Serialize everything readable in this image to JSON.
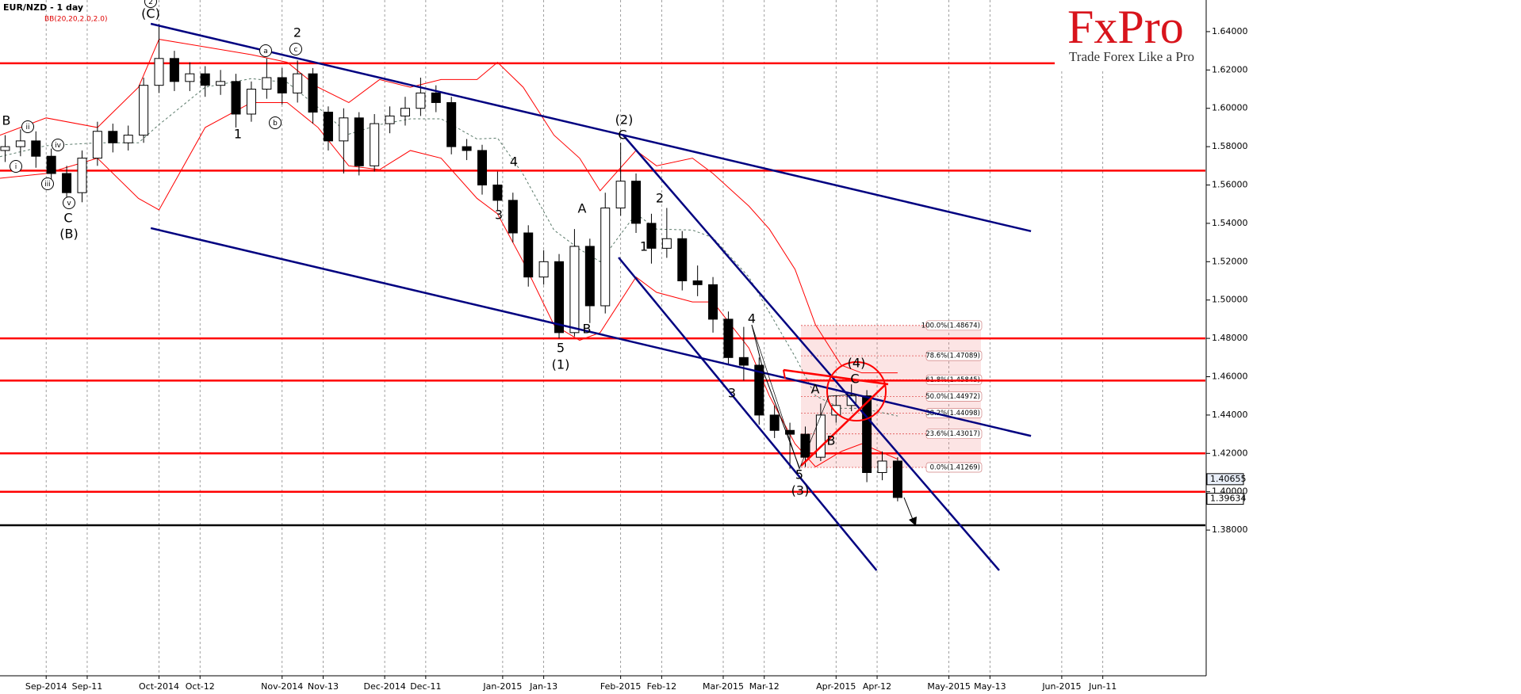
{
  "chart_data": {
    "type": "candlestick",
    "title": "EUR/NZD - 1 day",
    "subtitle": "BB(20,20,2.0,2.0)",
    "xlim": [
      -9,
      226
    ],
    "ylim": [
      1.304,
      1.6565
    ],
    "xticks": [
      {
        "value": 0,
        "label": "Sep-2014"
      },
      {
        "value": 8,
        "label": "Sep-11"
      },
      {
        "value": 22,
        "label": "Oct-2014"
      },
      {
        "value": 30,
        "label": "Oct-12"
      },
      {
        "value": 46,
        "label": "Nov-2014"
      },
      {
        "value": 54,
        "label": "Nov-13"
      },
      {
        "value": 66,
        "label": "Dec-2014"
      },
      {
        "value": 74,
        "label": "Dec-11"
      },
      {
        "value": 89,
        "label": "Jan-2015"
      },
      {
        "value": 97,
        "label": "Jan-13"
      },
      {
        "value": 112,
        "label": "Feb-2015"
      },
      {
        "value": 120,
        "label": "Feb-12"
      },
      {
        "value": 132,
        "label": "Mar-2015"
      },
      {
        "value": 140,
        "label": "Mar-12"
      },
      {
        "value": 154,
        "label": "Apr-2015"
      },
      {
        "value": 162,
        "label": "Apr-12"
      },
      {
        "value": 176,
        "label": "May-2015"
      },
      {
        "value": 184,
        "label": "May-13"
      },
      {
        "value": 198,
        "label": "Jun-2015"
      },
      {
        "value": 206,
        "label": "Jun-11"
      }
    ],
    "yticks": [
      {
        "value": 1.64,
        "label": "1.64000"
      },
      {
        "value": 1.62,
        "label": "1.62000"
      },
      {
        "value": 1.6,
        "label": "1.60000"
      },
      {
        "value": 1.58,
        "label": "1.58000"
      },
      {
        "value": 1.56,
        "label": "1.56000"
      },
      {
        "value": 1.54,
        "label": "1.54000"
      },
      {
        "value": 1.52,
        "label": "1.52000"
      },
      {
        "value": 1.5,
        "label": "1.50000"
      },
      {
        "value": 1.48,
        "label": "1.48000"
      },
      {
        "value": 1.46,
        "label": "1.46000"
      },
      {
        "value": 1.44,
        "label": "1.44000"
      },
      {
        "value": 1.42,
        "label": "1.42000"
      },
      {
        "value": 1.4,
        "label": "1.40000"
      },
      {
        "value": 1.38,
        "label": "1.38000"
      }
    ],
    "candles": {
      "x": [
        -8,
        -5,
        -2,
        1,
        4,
        7,
        10,
        13,
        16,
        19,
        22,
        25,
        28,
        31,
        34,
        37,
        40,
        43,
        46,
        49,
        52,
        55,
        58,
        61,
        64,
        67,
        70,
        73,
        76,
        79,
        82,
        85,
        88,
        91,
        94,
        97,
        100,
        103,
        106,
        109,
        112,
        115,
        118,
        121,
        124,
        127,
        130,
        133,
        136,
        139,
        142,
        145,
        148,
        151,
        154,
        157,
        160,
        163,
        166
      ],
      "open": [
        1.578,
        1.58,
        1.583,
        1.575,
        1.566,
        1.556,
        1.574,
        1.588,
        1.582,
        1.586,
        1.612,
        1.626,
        1.614,
        1.618,
        1.612,
        1.614,
        1.597,
        1.61,
        1.616,
        1.608,
        1.618,
        1.598,
        1.583,
        1.595,
        1.57,
        1.592,
        1.596,
        1.6,
        1.608,
        1.603,
        1.58,
        1.578,
        1.56,
        1.552,
        1.535,
        1.512,
        1.52,
        1.483,
        1.528,
        1.497,
        1.548,
        1.562,
        1.54,
        1.527,
        1.532,
        1.51,
        1.508,
        1.49,
        1.47,
        1.466,
        1.44,
        1.432,
        1.43,
        1.418,
        1.44,
        1.445,
        1.45,
        1.41,
        1.416
      ],
      "high": [
        1.586,
        1.589,
        1.588,
        1.579,
        1.57,
        1.578,
        1.593,
        1.592,
        1.591,
        1.616,
        1.644,
        1.63,
        1.624,
        1.622,
        1.62,
        1.618,
        1.614,
        1.626,
        1.621,
        1.625,
        1.621,
        1.601,
        1.6,
        1.598,
        1.597,
        1.601,
        1.606,
        1.616,
        1.612,
        1.606,
        1.584,
        1.581,
        1.567,
        1.556,
        1.539,
        1.526,
        1.524,
        1.537,
        1.532,
        1.556,
        1.582,
        1.566,
        1.545,
        1.548,
        1.536,
        1.518,
        1.512,
        1.494,
        1.486,
        1.47,
        1.445,
        1.436,
        1.434,
        1.446,
        1.45,
        1.456,
        1.453,
        1.421,
        1.418
      ],
      "low": [
        1.572,
        1.575,
        1.569,
        1.56,
        1.552,
        1.551,
        1.57,
        1.577,
        1.578,
        1.582,
        1.608,
        1.609,
        1.609,
        1.606,
        1.607,
        1.59,
        1.593,
        1.605,
        1.602,
        1.603,
        1.592,
        1.578,
        1.566,
        1.565,
        1.567,
        1.587,
        1.591,
        1.596,
        1.598,
        1.576,
        1.573,
        1.555,
        1.547,
        1.53,
        1.507,
        1.508,
        1.48,
        1.481,
        1.488,
        1.493,
        1.544,
        1.535,
        1.519,
        1.522,
        1.505,
        1.502,
        1.483,
        1.466,
        1.458,
        1.435,
        1.428,
        1.412,
        1.413,
        1.416,
        1.436,
        1.442,
        1.405,
        1.406,
        1.395
      ],
      "close": [
        1.58,
        1.583,
        1.575,
        1.566,
        1.556,
        1.574,
        1.588,
        1.582,
        1.586,
        1.612,
        1.626,
        1.614,
        1.618,
        1.612,
        1.614,
        1.597,
        1.61,
        1.616,
        1.608,
        1.618,
        1.598,
        1.583,
        1.595,
        1.57,
        1.592,
        1.596,
        1.6,
        1.608,
        1.603,
        1.58,
        1.578,
        1.56,
        1.552,
        1.535,
        1.512,
        1.52,
        1.483,
        1.528,
        1.497,
        1.548,
        1.562,
        1.54,
        1.527,
        1.532,
        1.51,
        1.508,
        1.49,
        1.47,
        1.466,
        1.44,
        1.432,
        1.43,
        1.418,
        1.44,
        1.445,
        1.45,
        1.41,
        1.416,
        1.397
      ],
      "up_color": "#ffffff",
      "down_color": "#000000"
    },
    "bollinger": {
      "x": [
        -9,
        0,
        10,
        18,
        22,
        31,
        40,
        47,
        53,
        59,
        65,
        71,
        77,
        84,
        88,
        93,
        99,
        104,
        108,
        115,
        119,
        126,
        130,
        137,
        141,
        146,
        150,
        155,
        159,
        166
      ],
      "upper": [
        1.586,
        1.595,
        1.59,
        1.611,
        1.636,
        1.632,
        1.628,
        1.624,
        1.611,
        1.603,
        1.615,
        1.611,
        1.615,
        1.615,
        1.624,
        1.611,
        1.586,
        1.574,
        1.557,
        1.578,
        1.57,
        1.574,
        1.566,
        1.549,
        1.537,
        1.516,
        1.487,
        1.466,
        1.462,
        1.462
      ],
      "middle": [
        1.5748,
        1.5805,
        1.582,
        1.582,
        1.5915,
        1.611,
        1.6155,
        1.6135,
        1.6005,
        1.5865,
        1.5915,
        1.5945,
        1.5945,
        1.584,
        1.5845,
        1.5655,
        1.5365,
        1.5265,
        1.52,
        1.545,
        1.537,
        1.5365,
        1.5325,
        1.512,
        1.4935,
        1.4705,
        1.45,
        1.4435,
        1.4435,
        1.4395
      ],
      "lower": [
        1.5635,
        1.566,
        1.574,
        1.553,
        1.547,
        1.59,
        1.603,
        1.603,
        1.59,
        1.57,
        1.568,
        1.578,
        1.574,
        1.553,
        1.545,
        1.52,
        1.487,
        1.479,
        1.483,
        1.512,
        1.504,
        1.499,
        1.499,
        1.475,
        1.45,
        1.425,
        1.413,
        1.421,
        1.425,
        1.417
      ],
      "band_color": "#ff0000",
      "middle_color": "#5a7a6a"
    },
    "levels": {
      "values": [
        1.6235,
        1.5675,
        1.48,
        1.458,
        1.42,
        1.4
      ],
      "color": "#ff0000"
    },
    "support": {
      "values": [
        1.3825
      ],
      "color": "#000000"
    },
    "channels": {
      "color": "#000080",
      "lines": [
        {
          "x": [
            20.4,
            192.0
          ],
          "y": [
            1.6441,
            1.5359
          ]
        },
        {
          "x": [
            20.4,
            192.0
          ],
          "y": [
            1.5375,
            1.4291
          ]
        },
        {
          "x": [
            111.6,
            161.9
          ],
          "y": [
            1.5222,
            1.359
          ]
        },
        {
          "x": [
            112.4,
            185.8
          ],
          "y": [
            1.5863,
            1.359
          ]
        }
      ]
    },
    "fibonacci": [
      {
        "value": 1.48674,
        "label": "100.0%(1.48674)"
      },
      {
        "value": 1.47089,
        "label": "78.6%(1.47089)"
      },
      {
        "value": 1.45845,
        "label": "61.8%(1.45845)"
      },
      {
        "value": 1.44972,
        "label": "50.0%(1.44972)"
      },
      {
        "value": 1.44098,
        "label": "38.2%(1.44098)"
      },
      {
        "value": 1.43017,
        "label": "23.6%(1.43017)"
      },
      {
        "value": 1.41269,
        "label": "0.0%(1.41269)"
      }
    ],
    "price_markers": [
      1.40655,
      1.39634
    ],
    "annotations": [
      "B",
      "ii",
      "i",
      "iii",
      "iv",
      "v",
      "C",
      "(B)",
      "2",
      "(C)",
      "a",
      "2",
      "c",
      "b",
      "1",
      "4",
      "3",
      "A",
      "5",
      "(1)",
      "B",
      "(2)",
      "C",
      "2",
      "1",
      "4",
      "3",
      "A",
      "B",
      "(4)",
      "C",
      "5",
      "(3)"
    ],
    "logo": {
      "name": "FxPro",
      "tagline": "Trade Forex Like a Pro"
    }
  }
}
